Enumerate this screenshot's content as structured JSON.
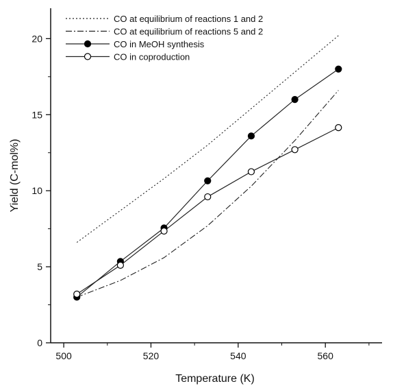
{
  "chart_data": {
    "type": "line",
    "title": "",
    "xlabel": "Temperature (K)",
    "ylabel": "Yield (C-mol%)",
    "xlim": [
      497,
      573
    ],
    "ylim": [
      0,
      22
    ],
    "xticks": [
      "500",
      "520",
      "540",
      "560"
    ],
    "xtick_values": [
      500,
      520,
      540,
      560
    ],
    "yticks": [
      "0",
      "5",
      "10",
      "15",
      "20"
    ],
    "ytick_values": [
      0,
      5,
      10,
      15,
      20
    ],
    "grid": false,
    "legend_position": "top-left",
    "series": [
      {
        "name": "CO at equilibrium of reactions 1 and 2",
        "style": "dotted",
        "marker": "none",
        "color": "#222222",
        "x": [
          503,
          513,
          523,
          533,
          543,
          553,
          563
        ],
        "y": [
          6.6,
          8.7,
          10.8,
          13.0,
          15.4,
          17.8,
          20.2
        ]
      },
      {
        "name": "CO at equilibrium of reactions 5 and 2",
        "style": "dashdot",
        "marker": "none",
        "color": "#222222",
        "x": [
          503,
          513,
          523,
          533,
          543,
          553,
          563
        ],
        "y": [
          3.0,
          4.1,
          5.6,
          7.7,
          10.3,
          13.3,
          16.6
        ]
      },
      {
        "name": "CO in MeOH synthesis",
        "style": "solid",
        "marker": "filled-circle",
        "color": "#222222",
        "x": [
          503,
          513,
          523,
          533,
          543,
          553,
          563
        ],
        "y": [
          3.0,
          5.35,
          7.55,
          10.65,
          13.6,
          16.0,
          18.0
        ]
      },
      {
        "name": "CO in coproduction",
        "style": "solid",
        "marker": "open-circle",
        "color": "#222222",
        "x": [
          503,
          513,
          523,
          533,
          543,
          553,
          563
        ],
        "y": [
          3.2,
          5.1,
          7.35,
          9.6,
          11.25,
          12.7,
          14.15
        ]
      }
    ]
  }
}
